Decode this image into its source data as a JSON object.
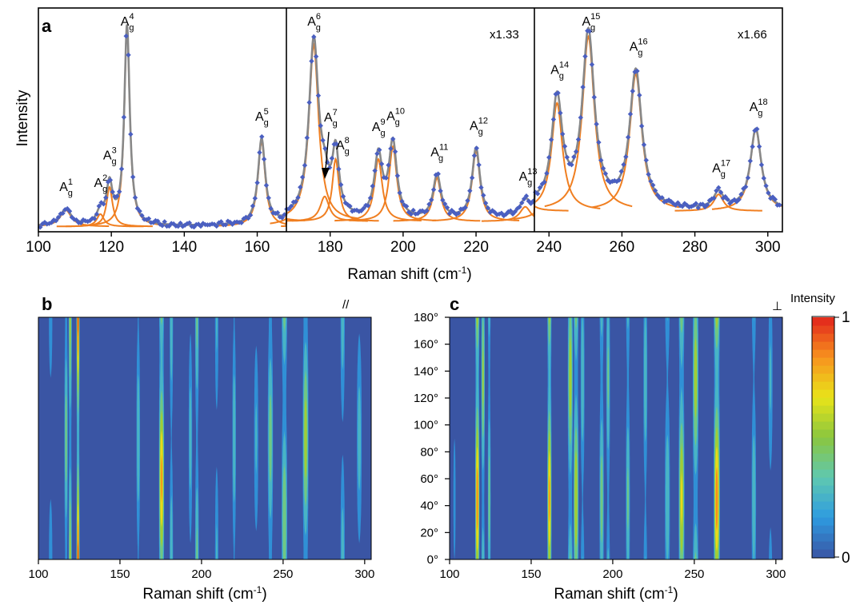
{
  "figure": {
    "panel_a_label": "a",
    "panel_b_label": "b",
    "panel_c_label": "c",
    "y_axis_label_a": "Intensity",
    "x_axis_label_a": "Raman shift (cm",
    "x_axis_label_a_sup": "-1",
    "x_axis_label_a_close": ")",
    "x_axis_label_bc": "Raman shift (cm",
    "x_axis_label_bc_sup": "-1",
    "x_axis_label_bc_close": ")",
    "scale_mid": "x1.33",
    "scale_right": "x1.66",
    "pol_b": "//",
    "pol_c": "⊥",
    "colorbar_title": "Intensity",
    "colorbar_max": "1",
    "colorbar_min": "0"
  },
  "chart_data": [
    {
      "type": "line",
      "panel": "a",
      "xlabel": "Raman shift (cm-1)",
      "ylabel": "Intensity",
      "xlim": [
        100,
        304
      ],
      "x_ticks": [
        100,
        120,
        140,
        160,
        180,
        200,
        220,
        240,
        260,
        280,
        300
      ],
      "segments": [
        {
          "range": [
            100,
            168
          ],
          "scale": "",
          "baseline": 0.025
        },
        {
          "range": [
            168,
            236
          ],
          "scale": "x1.33",
          "baseline": 0.05
        },
        {
          "range": [
            236,
            304
          ],
          "scale": "x1.66",
          "baseline": 0.1
        }
      ],
      "series": [
        {
          "name": "",
          "kind": "measured",
          "color": "#4a5fc1"
        },
        {
          "name": "",
          "kind": "fit",
          "color": "#888888"
        },
        {
          "name": "",
          "kind": "components",
          "color": "#f07f21"
        }
      ],
      "peaks": [
        {
          "label": "A",
          "sub": "g",
          "sup": "1",
          "x": 107.5,
          "height": 0.08,
          "width": 1.8
        },
        {
          "label": "A",
          "sub": "g",
          "sup": "2",
          "x": 117,
          "height": 0.06,
          "width": 1.2
        },
        {
          "label": "A",
          "sub": "g",
          "sup": "3",
          "x": 119.5,
          "height": 0.19,
          "width": 1.0
        },
        {
          "label": "A",
          "sub": "g",
          "sup": "4",
          "x": 124.3,
          "height": 0.96,
          "width": 0.9
        },
        {
          "label": "A",
          "sub": "g",
          "sup": "5",
          "x": 161.2,
          "height": 0.41,
          "width": 1.2
        },
        {
          "label": "A",
          "sub": "g",
          "sup": "6",
          "x": 175.5,
          "height": 0.85,
          "width": 1.6
        },
        {
          "label": "A",
          "sub": "g",
          "sup": "7",
          "x": 178.5,
          "height": 0.12,
          "width": 1.5
        },
        {
          "label": "A",
          "sub": "g",
          "sup": "8",
          "x": 181.5,
          "height": 0.3,
          "width": 1.1
        },
        {
          "label": "A",
          "sub": "g",
          "sup": "9",
          "x": 193.2,
          "height": 0.3,
          "width": 1.3
        },
        {
          "label": "A",
          "sub": "g",
          "sup": "10",
          "x": 197.2,
          "height": 0.36,
          "width": 1.3
        },
        {
          "label": "A",
          "sub": "g",
          "sup": "11",
          "x": 209.3,
          "height": 0.21,
          "width": 1.3
        },
        {
          "label": "A",
          "sub": "g",
          "sup": "12",
          "x": 220,
          "height": 0.34,
          "width": 1.3
        },
        {
          "label": "A",
          "sub": "g",
          "sup": "13",
          "x": 233.5,
          "height": 0.07,
          "width": 1.8
        },
        {
          "label": "A",
          "sub": "g",
          "sup": "14",
          "x": 242.2,
          "height": 0.52,
          "width": 1.8
        },
        {
          "label": "A",
          "sub": "g",
          "sup": "15",
          "x": 250.8,
          "height": 0.84,
          "width": 2.0
        },
        {
          "label": "A",
          "sub": "g",
          "sup": "16",
          "x": 263.8,
          "height": 0.66,
          "width": 2.0
        },
        {
          "label": "A",
          "sub": "g",
          "sup": "17",
          "x": 286.5,
          "height": 0.08,
          "width": 1.6
        },
        {
          "label": "A",
          "sub": "g",
          "sup": "18",
          "x": 296.7,
          "height": 0.39,
          "width": 1.8
        }
      ]
    },
    {
      "type": "heatmap",
      "panel": "b",
      "polarization": "//",
      "xlabel": "Raman shift (cm-1)",
      "ylabel": "",
      "xlim": [
        100,
        304
      ],
      "ylim": [
        0,
        180
      ],
      "x_ticks": [
        100,
        150,
        200,
        250,
        300
      ],
      "y_ticks": [
        "0°",
        "20°",
        "40°",
        "60°",
        "80°",
        "100°",
        "120°",
        "140°",
        "160°",
        "180°"
      ],
      "colorscale": [
        "#3a55a4",
        "#2e9be0",
        "#5fc8b0",
        "#8ac63f",
        "#e8e419",
        "#f7931e",
        "#e2241c"
      ],
      "bands": [
        {
          "x": 107.5,
          "width": 1.8,
          "amp": 0.15,
          "phase": 0
        },
        {
          "x": 117,
          "width": 1.2,
          "amp": 0.45,
          "phase": 90
        },
        {
          "x": 119.5,
          "width": 1.1,
          "amp": 0.55,
          "phase": 0
        },
        {
          "x": 124.3,
          "width": 1.0,
          "amp": 0.95,
          "phase": 0
        },
        {
          "x": 161.2,
          "width": 1.3,
          "amp": 0.35,
          "phase": 90
        },
        {
          "x": 175.5,
          "width": 1.7,
          "amp": 0.85,
          "phase": 60
        },
        {
          "x": 181.5,
          "width": 1.2,
          "amp": 0.35,
          "phase": 0
        },
        {
          "x": 193.2,
          "width": 1.3,
          "amp": 0.3,
          "phase": 90
        },
        {
          "x": 197.2,
          "width": 1.3,
          "amp": 0.4,
          "phase": 0
        },
        {
          "x": 209.3,
          "width": 1.3,
          "amp": 0.25,
          "phase": 0
        },
        {
          "x": 220,
          "width": 1.3,
          "amp": 0.35,
          "phase": 90
        },
        {
          "x": 233.5,
          "width": 1.6,
          "amp": 0.25,
          "phase": 90
        },
        {
          "x": 242.2,
          "width": 1.8,
          "amp": 0.45,
          "phase": 90
        },
        {
          "x": 250.8,
          "width": 1.9,
          "amp": 0.5,
          "phase": 30
        },
        {
          "x": 263.8,
          "width": 1.9,
          "amp": 0.6,
          "phase": 90
        },
        {
          "x": 286.5,
          "width": 1.6,
          "amp": 0.3,
          "phase": 0
        },
        {
          "x": 296.7,
          "width": 1.8,
          "amp": 0.3,
          "phase": 90
        }
      ]
    },
    {
      "type": "heatmap",
      "panel": "c",
      "polarization": "⊥",
      "xlabel": "Raman shift (cm-1)",
      "ylabel": "",
      "xlim": [
        100,
        304
      ],
      "ylim": [
        0,
        180
      ],
      "x_ticks": [
        100,
        150,
        200,
        250,
        300
      ],
      "colorscale": [
        "#3a55a4",
        "#2e9be0",
        "#5fc8b0",
        "#8ac63f",
        "#e8e419",
        "#f7931e",
        "#e2241c"
      ],
      "bands": [
        {
          "x": 103,
          "width": 1.2,
          "amp": 0.15,
          "phase": 45
        },
        {
          "x": 117,
          "width": 1.4,
          "amp": 0.9,
          "phase": 45
        },
        {
          "x": 120.5,
          "width": 1.2,
          "amp": 0.55,
          "phase": 135
        },
        {
          "x": 124.3,
          "width": 1.0,
          "amp": 0.45,
          "phase": 45
        },
        {
          "x": 161.2,
          "width": 1.4,
          "amp": 0.85,
          "phase": 45
        },
        {
          "x": 174,
          "width": 1.7,
          "amp": 0.6,
          "phase": 135
        },
        {
          "x": 177.5,
          "width": 1.7,
          "amp": 0.65,
          "phase": 45
        },
        {
          "x": 181.5,
          "width": 1.4,
          "amp": 0.35,
          "phase": 135
        },
        {
          "x": 193.2,
          "width": 1.5,
          "amp": 0.45,
          "phase": 45
        },
        {
          "x": 197.2,
          "width": 1.3,
          "amp": 0.4,
          "phase": 135
        },
        {
          "x": 209.3,
          "width": 1.4,
          "amp": 0.4,
          "phase": 45
        },
        {
          "x": 220,
          "width": 1.4,
          "amp": 0.35,
          "phase": 135
        },
        {
          "x": 233.5,
          "width": 1.8,
          "amp": 0.35,
          "phase": 45
        },
        {
          "x": 242.2,
          "width": 1.9,
          "amp": 0.7,
          "phase": 45
        },
        {
          "x": 250.8,
          "width": 1.9,
          "amp": 0.6,
          "phase": 135
        },
        {
          "x": 263.8,
          "width": 2.0,
          "amp": 0.9,
          "phase": 45
        },
        {
          "x": 286.5,
          "width": 1.6,
          "amp": 0.35,
          "phase": 45
        },
        {
          "x": 296.7,
          "width": 1.6,
          "amp": 0.25,
          "phase": 135
        }
      ]
    }
  ]
}
